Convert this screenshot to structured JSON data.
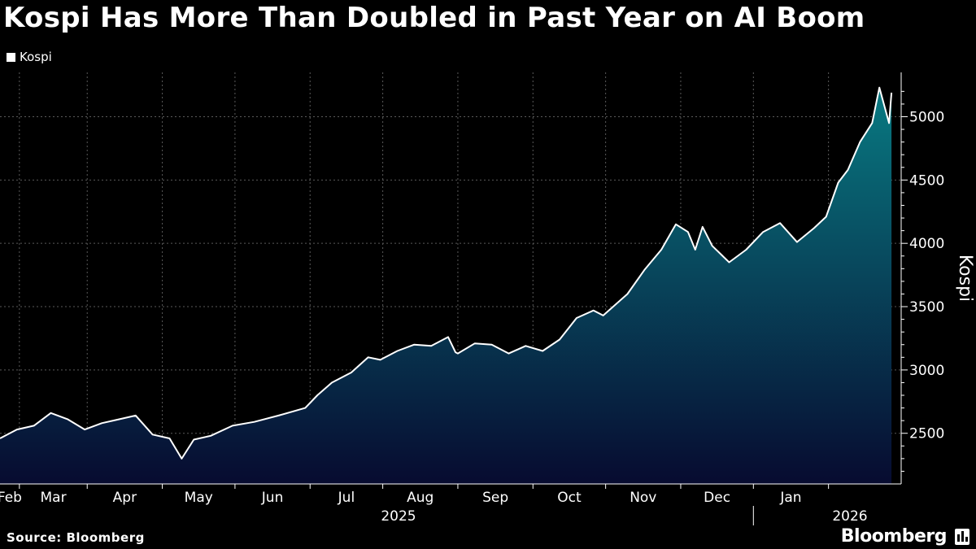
{
  "header": {
    "title": "Kospi Has More Than Doubled in Past Year on AI Boom"
  },
  "legend": {
    "label": "Kospi",
    "color": "#ffffff"
  },
  "footer": {
    "source": "Source: Bloomberg",
    "brand": "Bloomberg"
  },
  "colors": {
    "background": "#000000",
    "line": "#ffffff",
    "fill_top": "#087a82",
    "fill_bottom": "#070b30",
    "grid": "#5a5a5a"
  },
  "chart_data": {
    "type": "area",
    "ylabel": "Kospi",
    "yticks": [
      2500,
      3000,
      3500,
      4000,
      4500,
      5000
    ],
    "ylim": [
      2100,
      5350
    ],
    "grid": true,
    "legend_position": "top-left",
    "xaxis": {
      "months": [
        "Feb",
        "Mar",
        "Apr",
        "May",
        "Jun",
        "Jul",
        "Aug",
        "Sep",
        "Oct",
        "Nov",
        "Dec",
        "Jan"
      ],
      "year_labels": [
        "2025",
        "2026"
      ]
    },
    "series": [
      {
        "name": "Kospi",
        "x": [
          "2025-01-24",
          "2025-01-31",
          "2025-02-07",
          "2025-02-14",
          "2025-02-21",
          "2025-02-28",
          "2025-03-07",
          "2025-03-14",
          "2025-03-21",
          "2025-03-28",
          "2025-04-04",
          "2025-04-09",
          "2025-04-14",
          "2025-04-21",
          "2025-04-30",
          "2025-05-09",
          "2025-05-19",
          "2025-05-30",
          "2025-06-04",
          "2025-06-10",
          "2025-06-18",
          "2025-06-25",
          "2025-06-30",
          "2025-07-07",
          "2025-07-14",
          "2025-07-21",
          "2025-07-28",
          "2025-07-31",
          "2025-08-01",
          "2025-08-08",
          "2025-08-15",
          "2025-08-22",
          "2025-08-29",
          "2025-09-05",
          "2025-09-12",
          "2025-09-19",
          "2025-09-26",
          "2025-09-30",
          "2025-10-10",
          "2025-10-17",
          "2025-10-24",
          "2025-10-30",
          "2025-11-04",
          "2025-11-07",
          "2025-11-10",
          "2025-11-14",
          "2025-11-21",
          "2025-11-28",
          "2025-12-05",
          "2025-12-12",
          "2025-12-19",
          "2025-12-26",
          "2025-12-31",
          "2026-01-05",
          "2026-01-09",
          "2026-01-14",
          "2026-01-19",
          "2026-01-22",
          "2026-01-26",
          "2026-01-27"
        ],
        "values": [
          2460,
          2530,
          2560,
          2660,
          2610,
          2530,
          2580,
          2610,
          2640,
          2490,
          2460,
          2300,
          2450,
          2480,
          2560,
          2590,
          2640,
          2700,
          2800,
          2900,
          2980,
          3100,
          3080,
          3150,
          3200,
          3190,
          3260,
          3140,
          3130,
          3210,
          3200,
          3130,
          3190,
          3150,
          3240,
          3410,
          3470,
          3430,
          3600,
          3790,
          3950,
          4150,
          4090,
          3950,
          4130,
          3980,
          3850,
          3950,
          4090,
          4160,
          4010,
          4120,
          4210,
          4480,
          4580,
          4800,
          4950,
          5230,
          4950,
          5190
        ]
      }
    ]
  }
}
